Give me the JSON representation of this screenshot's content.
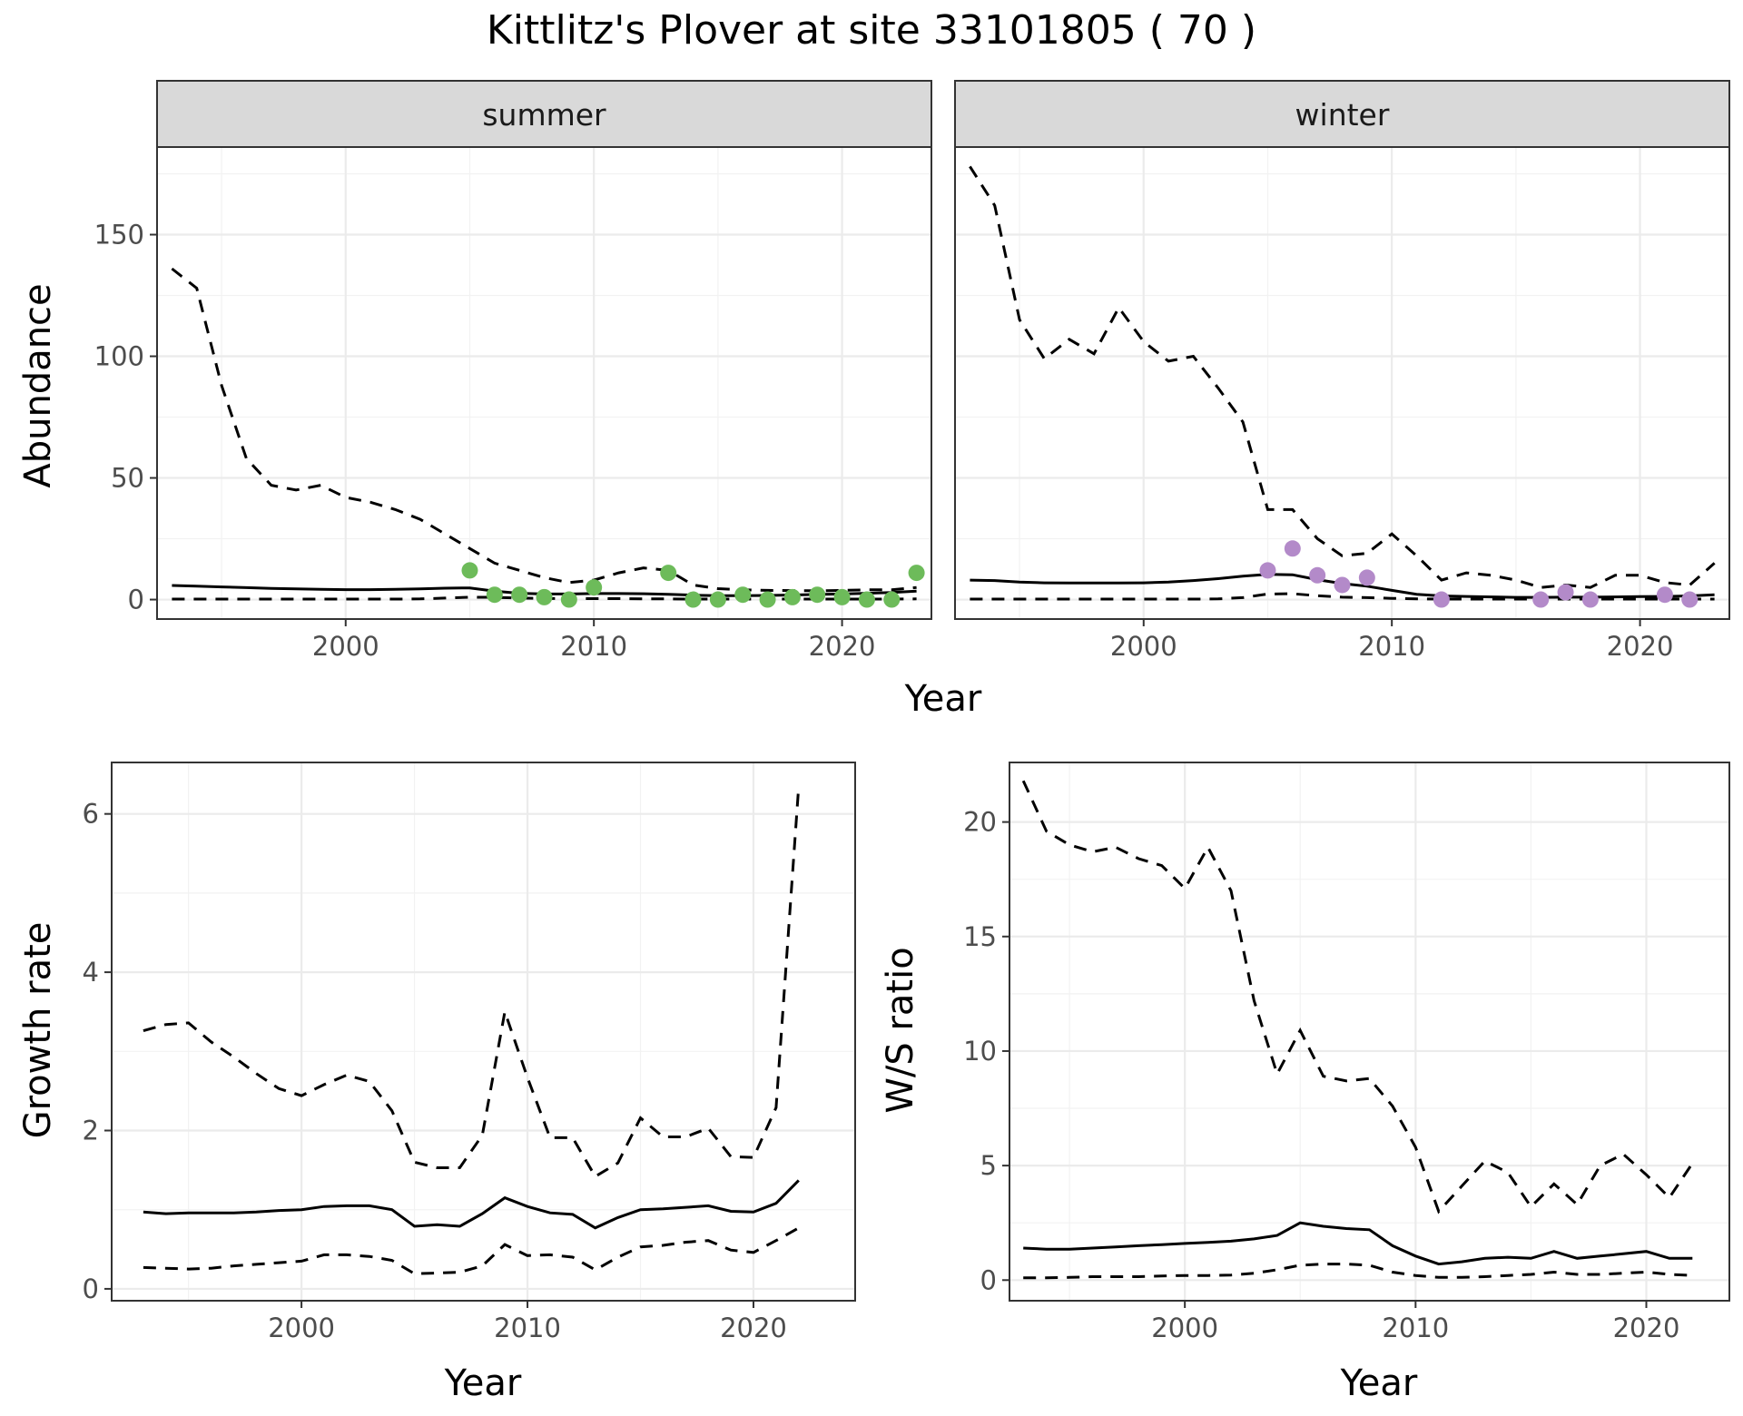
{
  "title": "Kittlitz's Plover at site 33101805 ( 70 )",
  "colors": {
    "summer_points": "#6dbb5a",
    "winter_points": "#b38ac9",
    "lines": "#000000"
  },
  "abundance": {
    "ylabel": "Abundance",
    "xlabel": "Year",
    "panels": [
      "summer",
      "winter"
    ]
  },
  "growth": {
    "ylabel": "Growth rate",
    "xlabel": "Year"
  },
  "ws": {
    "ylabel": "W/S ratio",
    "xlabel": "Year"
  },
  "chart_data": [
    {
      "type": "line",
      "facet": "summer",
      "xlim": [
        1992.4,
        2023.6
      ],
      "ylim": [
        -8,
        186
      ],
      "x_ticks": [
        2000,
        2010,
        2020
      ],
      "y_ticks": [
        0,
        50,
        100,
        150
      ],
      "series": [
        {
          "role": "estimate",
          "x": [
            1993,
            1994,
            1995,
            1996,
            1997,
            1998,
            1999,
            2000,
            2001,
            2002,
            2003,
            2004,
            2005,
            2006,
            2007,
            2008,
            2009,
            2010,
            2011,
            2012,
            2013,
            2014,
            2015,
            2016,
            2017,
            2018,
            2019,
            2020,
            2021,
            2022,
            2023
          ],
          "y": [
            5.8,
            5.5,
            5.2,
            4.9,
            4.6,
            4.4,
            4.2,
            4.1,
            4.1,
            4.2,
            4.4,
            4.7,
            4.8,
            3.5,
            2.6,
            2.3,
            2.3,
            2.5,
            2.5,
            2.4,
            2.2,
            1.8,
            1.6,
            1.6,
            1.7,
            1.9,
            2.1,
            2.3,
            2.6,
            2.9,
            3.5
          ]
        },
        {
          "role": "upper",
          "x": [
            1993,
            1994,
            1995,
            1996,
            1997,
            1998,
            1999,
            2000,
            2001,
            2002,
            2003,
            2004,
            2005,
            2006,
            2007,
            2008,
            2009,
            2010,
            2011,
            2012,
            2013,
            2014,
            2015,
            2016,
            2017,
            2018,
            2019,
            2020,
            2021,
            2022,
            2023
          ],
          "y": [
            136,
            128,
            88,
            58,
            47,
            45,
            47,
            42,
            40,
            37,
            33,
            27,
            21,
            15,
            12,
            9,
            7,
            8,
            11,
            13,
            12,
            6,
            4.5,
            4,
            3.8,
            3.7,
            3.6,
            3.8,
            4,
            4,
            5
          ]
        },
        {
          "role": "lower",
          "x": [
            1993,
            1994,
            1995,
            1996,
            1997,
            1998,
            1999,
            2000,
            2001,
            2002,
            2003,
            2004,
            2005,
            2006,
            2007,
            2008,
            2009,
            2010,
            2011,
            2012,
            2013,
            2014,
            2015,
            2016,
            2017,
            2018,
            2019,
            2020,
            2021,
            2022,
            2023
          ],
          "y": [
            0.2,
            0.2,
            0.2,
            0.2,
            0.2,
            0.2,
            0.2,
            0.2,
            0.2,
            0.2,
            0.3,
            0.6,
            1.0,
            0.9,
            0.6,
            0.5,
            0.4,
            0.4,
            0.4,
            0.3,
            0.3,
            0.2,
            0.2,
            0.2,
            0.2,
            0.2,
            0.2,
            0.2,
            0.2,
            0.2,
            0.3
          ]
        },
        {
          "role": "counts",
          "x": [
            2005,
            2006,
            2007,
            2008,
            2009,
            2010,
            2013,
            2014,
            2015,
            2016,
            2017,
            2018,
            2019,
            2020,
            2021,
            2022,
            2023
          ],
          "y": [
            12,
            2,
            2,
            1,
            0,
            5,
            11,
            0,
            0,
            2,
            0,
            1,
            2,
            1,
            0,
            0,
            11
          ]
        }
      ]
    },
    {
      "type": "line",
      "facet": "winter",
      "xlim": [
        1992.4,
        2023.6
      ],
      "ylim": [
        -8,
        186
      ],
      "x_ticks": [
        2000,
        2010,
        2020
      ],
      "y_ticks": [
        0,
        50,
        100,
        150
      ],
      "series": [
        {
          "role": "estimate",
          "x": [
            1993,
            1994,
            1995,
            1996,
            1997,
            1998,
            1999,
            2000,
            2001,
            2002,
            2003,
            2004,
            2005,
            2006,
            2007,
            2008,
            2009,
            2010,
            2011,
            2012,
            2013,
            2014,
            2015,
            2016,
            2017,
            2018,
            2019,
            2020,
            2021,
            2022,
            2023
          ],
          "y": [
            8,
            7.8,
            7.2,
            6.9,
            6.8,
            6.8,
            6.8,
            6.9,
            7.2,
            7.8,
            8.6,
            9.6,
            10.4,
            10.2,
            8.2,
            6.6,
            5.5,
            3.8,
            2.2,
            1.5,
            1.3,
            1.1,
            0.9,
            0.9,
            1.0,
            1.0,
            1.1,
            1.2,
            1.3,
            1.5,
            2.0
          ]
        },
        {
          "role": "upper",
          "x": [
            1993,
            1994,
            1995,
            1996,
            1997,
            1998,
            1999,
            2000,
            2001,
            2002,
            2003,
            2004,
            2005,
            2006,
            2007,
            2008,
            2009,
            2010,
            2011,
            2012,
            2013,
            2014,
            2015,
            2016,
            2017,
            2018,
            2019,
            2020,
            2021,
            2022,
            2023
          ],
          "y": [
            178,
            162,
            115,
            99,
            107,
            101,
            120,
            106,
            98,
            100,
            87,
            73,
            37,
            37,
            25,
            18,
            19,
            27,
            18,
            8,
            11,
            10,
            8,
            5,
            6,
            5,
            10,
            10,
            7,
            6,
            15
          ]
        },
        {
          "role": "lower",
          "x": [
            1993,
            1994,
            1995,
            1996,
            1997,
            1998,
            1999,
            2000,
            2001,
            2002,
            2003,
            2004,
            2005,
            2006,
            2007,
            2008,
            2009,
            2010,
            2011,
            2012,
            2013,
            2014,
            2015,
            2016,
            2017,
            2018,
            2019,
            2020,
            2021,
            2022,
            2023
          ],
          "y": [
            0.2,
            0.2,
            0.2,
            0.2,
            0.2,
            0.2,
            0.2,
            0.2,
            0.2,
            0.2,
            0.3,
            0.8,
            2.3,
            2.4,
            1.6,
            1.0,
            0.8,
            0.5,
            0.3,
            0.2,
            0.2,
            0.2,
            0.2,
            0.2,
            0.2,
            0.2,
            0.2,
            0.2,
            0.2,
            0.2,
            0.2
          ]
        },
        {
          "role": "counts",
          "x": [
            2005,
            2006,
            2007,
            2008,
            2009,
            2012,
            2016,
            2017,
            2018,
            2021,
            2022
          ],
          "y": [
            12,
            21,
            10,
            6,
            9,
            0,
            0,
            3,
            0,
            2,
            0
          ]
        }
      ]
    },
    {
      "type": "line",
      "xlim": [
        1991.6,
        2024.5
      ],
      "ylim": [
        -0.15,
        6.65
      ],
      "x_ticks": [
        2000,
        2010,
        2020
      ],
      "y_ticks": [
        0,
        2,
        4,
        6
      ],
      "series": [
        {
          "role": "estimate",
          "x": [
            1993,
            1994,
            1995,
            1996,
            1997,
            1998,
            1999,
            2000,
            2001,
            2002,
            2003,
            2004,
            2005,
            2006,
            2007,
            2008,
            2009,
            2010,
            2011,
            2012,
            2013,
            2014,
            2015,
            2016,
            2017,
            2018,
            2019,
            2020,
            2021,
            2022
          ],
          "y": [
            0.97,
            0.95,
            0.96,
            0.96,
            0.96,
            0.97,
            0.99,
            1.0,
            1.04,
            1.05,
            1.05,
            1.0,
            0.79,
            0.81,
            0.79,
            0.95,
            1.15,
            1.04,
            0.96,
            0.94,
            0.77,
            0.9,
            1.0,
            1.01,
            1.03,
            1.05,
            0.98,
            0.97,
            1.08,
            1.37
          ]
        },
        {
          "role": "upper",
          "x": [
            1993,
            1994,
            1995,
            1996,
            1997,
            1998,
            1999,
            2000,
            2001,
            2002,
            2003,
            2004,
            2005,
            2006,
            2007,
            2008,
            2009,
            2010,
            2011,
            2012,
            2013,
            2014,
            2015,
            2016,
            2017,
            2018,
            2019,
            2020,
            2021,
            2022
          ],
          "y": [
            3.26,
            3.34,
            3.36,
            3.12,
            2.93,
            2.72,
            2.53,
            2.44,
            2.58,
            2.7,
            2.62,
            2.25,
            1.6,
            1.53,
            1.53,
            1.94,
            3.5,
            2.67,
            1.91,
            1.91,
            1.42,
            1.59,
            2.16,
            1.92,
            1.92,
            2.03,
            1.67,
            1.66,
            2.29,
            6.35
          ]
        },
        {
          "role": "lower",
          "x": [
            1993,
            1994,
            1995,
            1996,
            1997,
            1998,
            1999,
            2000,
            2001,
            2002,
            2003,
            2004,
            2005,
            2006,
            2007,
            2008,
            2009,
            2010,
            2011,
            2012,
            2013,
            2014,
            2015,
            2016,
            2017,
            2018,
            2019,
            2020,
            2021,
            2022
          ],
          "y": [
            0.27,
            0.26,
            0.25,
            0.26,
            0.29,
            0.31,
            0.33,
            0.35,
            0.43,
            0.43,
            0.41,
            0.36,
            0.19,
            0.2,
            0.21,
            0.29,
            0.56,
            0.42,
            0.43,
            0.4,
            0.24,
            0.4,
            0.53,
            0.55,
            0.59,
            0.61,
            0.49,
            0.46,
            0.61,
            0.77
          ]
        }
      ]
    },
    {
      "type": "line",
      "xlim": [
        1992.4,
        2023.6
      ],
      "ylim": [
        -0.9,
        22.6
      ],
      "x_ticks": [
        2000,
        2010,
        2020
      ],
      "y_ticks": [
        0,
        5,
        10,
        15,
        20
      ],
      "series": [
        {
          "role": "estimate",
          "x": [
            1993,
            1994,
            1995,
            1996,
            1997,
            1998,
            1999,
            2000,
            2001,
            2002,
            2003,
            2004,
            2005,
            2006,
            2007,
            2008,
            2009,
            2010,
            2011,
            2012,
            2013,
            2014,
            2015,
            2016,
            2017,
            2018,
            2019,
            2020,
            2021,
            2022
          ],
          "y": [
            1.4,
            1.35,
            1.35,
            1.4,
            1.45,
            1.5,
            1.55,
            1.6,
            1.65,
            1.7,
            1.8,
            1.95,
            2.5,
            2.35,
            2.25,
            2.2,
            1.5,
            1.05,
            0.7,
            0.8,
            0.95,
            1.0,
            0.95,
            1.25,
            0.95,
            1.05,
            1.15,
            1.25,
            0.95,
            0.95
          ]
        },
        {
          "role": "upper",
          "x": [
            1993,
            1994,
            1995,
            1996,
            1997,
            1998,
            1999,
            2000,
            2001,
            2002,
            2003,
            2004,
            2005,
            2006,
            2007,
            2008,
            2009,
            2010,
            2011,
            2012,
            2013,
            2014,
            2015,
            2016,
            2017,
            2018,
            2019,
            2020,
            2021,
            2022
          ],
          "y": [
            21.8,
            19.6,
            19.0,
            18.7,
            18.9,
            18.4,
            18.1,
            17.1,
            18.9,
            17.0,
            12.2,
            9.0,
            10.9,
            8.9,
            8.7,
            8.8,
            7.6,
            5.8,
            3.0,
            4.1,
            5.2,
            4.7,
            3.2,
            4.2,
            3.3,
            5.0,
            5.5,
            4.6,
            3.6,
            5.1
          ]
        },
        {
          "role": "lower",
          "x": [
            1993,
            1994,
            1995,
            1996,
            1997,
            1998,
            1999,
            2000,
            2001,
            2002,
            2003,
            2004,
            2005,
            2006,
            2007,
            2008,
            2009,
            2010,
            2011,
            2012,
            2013,
            2014,
            2015,
            2016,
            2017,
            2018,
            2019,
            2020,
            2021,
            2022
          ],
          "y": [
            0.1,
            0.1,
            0.12,
            0.15,
            0.15,
            0.15,
            0.18,
            0.2,
            0.2,
            0.22,
            0.3,
            0.45,
            0.65,
            0.7,
            0.7,
            0.65,
            0.35,
            0.2,
            0.12,
            0.12,
            0.15,
            0.2,
            0.25,
            0.35,
            0.25,
            0.25,
            0.3,
            0.35,
            0.25,
            0.2
          ]
        }
      ]
    }
  ]
}
